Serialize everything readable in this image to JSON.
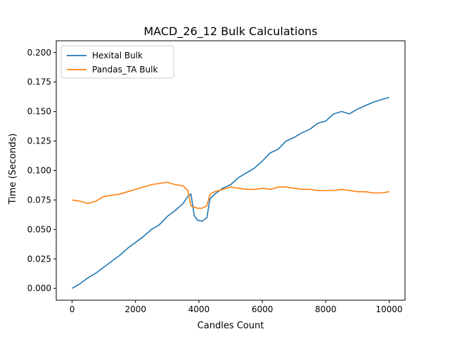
{
  "chart_data": {
    "type": "line",
    "title": "MACD_26_12 Bulk Calculations",
    "xlabel": "Candles Count",
    "ylabel": "Time (Seconds)",
    "xlim": [
      -500,
      10500
    ],
    "ylim": [
      -0.01,
      0.21
    ],
    "xticks": [
      0,
      2000,
      4000,
      6000,
      8000,
      10000
    ],
    "xtick_labels": [
      "0",
      "2000",
      "4000",
      "6000",
      "8000",
      "10000"
    ],
    "yticks": [
      0.0,
      0.025,
      0.05,
      0.075,
      0.1,
      0.125,
      0.15,
      0.175,
      0.2
    ],
    "ytick_labels": [
      "0.000",
      "0.025",
      "0.050",
      "0.075",
      "0.100",
      "0.125",
      "0.150",
      "0.175",
      "0.200"
    ],
    "grid": false,
    "legend_position": "top-left",
    "series": [
      {
        "name": "Hexital Bulk",
        "color": "#1f77b4",
        "x": [
          0,
          250,
          500,
          750,
          1000,
          1250,
          1500,
          1750,
          2000,
          2250,
          2500,
          2750,
          3000,
          3250,
          3500,
          3650,
          3750,
          3850,
          3950,
          4100,
          4250,
          4350,
          4500,
          4750,
          5000,
          5250,
          5500,
          5750,
          6000,
          6250,
          6500,
          6750,
          7000,
          7250,
          7500,
          7750,
          8000,
          8250,
          8500,
          8750,
          9000,
          9250,
          9500,
          9750,
          10000
        ],
        "y": [
          0.0,
          0.004,
          0.009,
          0.013,
          0.018,
          0.023,
          0.028,
          0.034,
          0.039,
          0.044,
          0.05,
          0.054,
          0.061,
          0.066,
          0.072,
          0.078,
          0.08,
          0.062,
          0.058,
          0.057,
          0.06,
          0.076,
          0.08,
          0.085,
          0.088,
          0.094,
          0.098,
          0.102,
          0.108,
          0.115,
          0.118,
          0.125,
          0.128,
          0.132,
          0.135,
          0.14,
          0.142,
          0.148,
          0.15,
          0.148,
          0.152,
          0.155,
          0.158,
          0.16,
          0.162
        ]
      },
      {
        "name": "Pandas_TA Bulk",
        "color": "#ff7f0e",
        "x": [
          0,
          250,
          500,
          750,
          1000,
          1250,
          1500,
          1750,
          2000,
          2250,
          2500,
          2750,
          3000,
          3250,
          3500,
          3650,
          3750,
          3850,
          3950,
          4100,
          4250,
          4350,
          4500,
          4750,
          5000,
          5250,
          5500,
          5750,
          6000,
          6250,
          6500,
          6750,
          7000,
          7250,
          7500,
          7750,
          8000,
          8250,
          8500,
          8750,
          9000,
          9250,
          9500,
          9750,
          10000
        ],
        "y": [
          0.075,
          0.074,
          0.072,
          0.074,
          0.078,
          0.079,
          0.08,
          0.082,
          0.084,
          0.086,
          0.088,
          0.089,
          0.09,
          0.088,
          0.087,
          0.083,
          0.07,
          0.069,
          0.068,
          0.068,
          0.07,
          0.08,
          0.082,
          0.084,
          0.086,
          0.085,
          0.084,
          0.084,
          0.085,
          0.084,
          0.086,
          0.086,
          0.085,
          0.084,
          0.084,
          0.083,
          0.083,
          0.083,
          0.084,
          0.083,
          0.082,
          0.082,
          0.081,
          0.081,
          0.082
        ]
      }
    ]
  }
}
